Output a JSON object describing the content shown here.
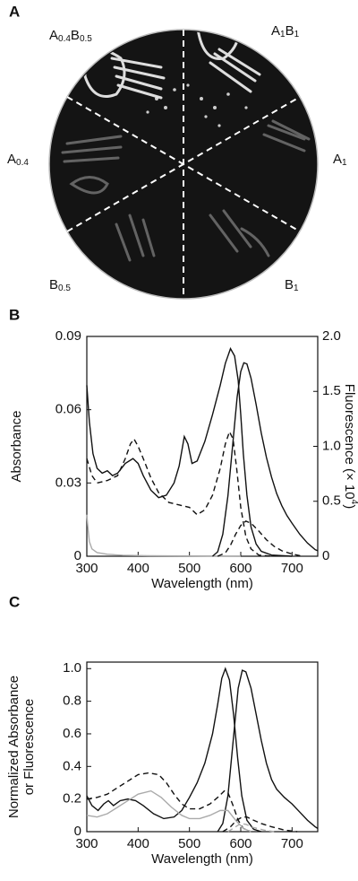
{
  "photo": {
    "panel": "A",
    "sectors": [
      {
        "parts": [
          "A",
          "0.4",
          "B",
          "0.5"
        ]
      },
      {
        "parts": [
          "A",
          "1",
          "B",
          "1"
        ]
      },
      {
        "parts": [
          "A",
          "0.4"
        ]
      },
      {
        "parts": [
          "A",
          "1"
        ]
      },
      {
        "parts": [
          "B",
          "0.5"
        ]
      },
      {
        "parts": [
          "B",
          "1"
        ]
      }
    ]
  },
  "chart_data": [
    {
      "type": "line",
      "panel": "B",
      "xlabel": "Wavelength (nm)",
      "ylabel": [
        "Absorbance"
      ],
      "y2label": [
        "Fluorescence (× 10",
        "4",
        ")"
      ],
      "xlim": [
        300,
        750
      ],
      "xticks": [
        300,
        400,
        500,
        600,
        700
      ],
      "ylim": [
        0,
        0.09
      ],
      "yticks": [
        0,
        0.03,
        0.06,
        0.09
      ],
      "y2lim": [
        0,
        2
      ],
      "y2ticks": [
        0,
        0.5,
        {
          "value": 1,
          "label": "1.0"
        },
        1.5,
        {
          "value": 2,
          "label": "2.0"
        }
      ],
      "series": [
        {
          "color": "#111111",
          "dash": false,
          "x": [
            300,
            305,
            312,
            320,
            330,
            340,
            350,
            360,
            375,
            390,
            400,
            410,
            425,
            440,
            455,
            470,
            480,
            490,
            497,
            505,
            515,
            530,
            545,
            560,
            570,
            580,
            588,
            595,
            600,
            605,
            612,
            620,
            630,
            640,
            660,
            700
          ],
          "values": [
            0.07,
            0.055,
            0.042,
            0.036,
            0.034,
            0.035,
            0.033,
            0.034,
            0.038,
            0.04,
            0.038,
            0.033,
            0.027,
            0.024,
            0.025,
            0.03,
            0.037,
            0.049,
            0.046,
            0.038,
            0.039,
            0.047,
            0.058,
            0.07,
            0.079,
            0.085,
            0.082,
            0.072,
            0.058,
            0.042,
            0.025,
            0.012,
            0.005,
            0.002,
            0.0005,
            0
          ]
        },
        {
          "color": "#111111",
          "dash": true,
          "x": [
            300,
            310,
            320,
            340,
            360,
            375,
            385,
            392,
            400,
            410,
            425,
            440,
            460,
            480,
            500,
            515,
            530,
            545,
            560,
            570,
            578,
            585,
            592,
            600,
            610,
            620,
            635,
            660
          ],
          "values": [
            0.04,
            0.033,
            0.03,
            0.031,
            0.033,
            0.04,
            0.046,
            0.048,
            0.045,
            0.04,
            0.032,
            0.026,
            0.022,
            0.021,
            0.02,
            0.017,
            0.019,
            0.025,
            0.036,
            0.046,
            0.051,
            0.048,
            0.036,
            0.02,
            0.008,
            0.003,
            0.0005,
            0
          ]
        },
        {
          "color": "#aaaaaa",
          "dash": false,
          "x": [
            300,
            302,
            305,
            310,
            320,
            340,
            370,
            420,
            500,
            600
          ],
          "values": [
            0.017,
            0.012,
            0.006,
            0.003,
            0.0015,
            0.0008,
            0.0004,
            0.0002,
            0.0001,
            0
          ]
        },
        {
          "color": "#111111",
          "dash": false,
          "axis": "y2",
          "x": [
            545,
            555,
            565,
            575,
            585,
            593,
            600,
            606,
            612,
            620,
            630,
            640,
            650,
            660,
            670,
            680,
            690,
            700,
            715,
            730,
            745,
            750
          ],
          "values": [
            0,
            0.04,
            0.2,
            0.55,
            1.05,
            1.45,
            1.68,
            1.76,
            1.75,
            1.62,
            1.38,
            1.12,
            0.9,
            0.72,
            0.57,
            0.46,
            0.37,
            0.3,
            0.2,
            0.12,
            0.06,
            0.05
          ]
        },
        {
          "color": "#111111",
          "dash": true,
          "axis": "y2",
          "x": [
            555,
            570,
            580,
            590,
            600,
            610,
            620,
            635,
            650,
            665,
            680,
            700,
            720
          ],
          "values": [
            0,
            0.03,
            0.1,
            0.2,
            0.28,
            0.32,
            0.3,
            0.23,
            0.15,
            0.09,
            0.05,
            0.02,
            0
          ]
        }
      ]
    },
    {
      "type": "line",
      "panel": "C",
      "xlabel": "Wavelength (nm)",
      "ylabel": [
        "Normalized Absorbance",
        "or Fluorescence"
      ],
      "xlim": [
        300,
        750
      ],
      "xticks": [
        300,
        400,
        500,
        600,
        700
      ],
      "ylim": [
        0,
        1.04
      ],
      "yticks": [
        0,
        0.2,
        0.4,
        0.6,
        0.8,
        {
          "value": 1,
          "label": "1.0"
        }
      ],
      "series": [
        {
          "color": "#111111",
          "dash": false,
          "x": [
            300,
            310,
            322,
            333,
            342,
            352,
            365,
            380,
            395,
            410,
            430,
            450,
            470,
            485,
            500,
            515,
            530,
            545,
            555,
            563,
            570,
            578,
            586,
            594,
            602,
            612,
            625,
            640
          ],
          "values": [
            0.22,
            0.16,
            0.13,
            0.17,
            0.19,
            0.16,
            0.19,
            0.2,
            0.19,
            0.16,
            0.11,
            0.08,
            0.09,
            0.13,
            0.21,
            0.3,
            0.42,
            0.6,
            0.78,
            0.94,
            1.0,
            0.93,
            0.72,
            0.45,
            0.22,
            0.07,
            0.015,
            0
          ]
        },
        {
          "color": "#111111",
          "dash": false,
          "x": [
            555,
            565,
            575,
            585,
            595,
            603,
            610,
            620,
            630,
            640,
            650,
            660,
            670,
            685,
            700,
            715,
            730,
            745,
            750
          ],
          "values": [
            0,
            0.05,
            0.22,
            0.55,
            0.88,
            0.99,
            0.98,
            0.88,
            0.72,
            0.56,
            0.42,
            0.32,
            0.26,
            0.21,
            0.17,
            0.12,
            0.07,
            0.03,
            0.02
          ]
        },
        {
          "color": "#111111",
          "dash": true,
          "x": [
            300,
            320,
            340,
            360,
            380,
            400,
            420,
            440,
            455,
            470,
            485,
            500,
            520,
            540,
            555,
            568,
            575,
            585,
            595,
            605,
            620
          ],
          "values": [
            0.2,
            0.21,
            0.23,
            0.27,
            0.31,
            0.35,
            0.36,
            0.35,
            0.3,
            0.23,
            0.17,
            0.14,
            0.14,
            0.17,
            0.21,
            0.25,
            0.24,
            0.16,
            0.07,
            0.02,
            0
          ]
        },
        {
          "color": "#aaaaaa",
          "dash": false,
          "x": [
            300,
            320,
            340,
            360,
            380,
            400,
            425,
            445,
            465,
            485,
            500,
            520,
            540,
            560,
            575,
            590,
            605,
            620
          ],
          "values": [
            0.1,
            0.09,
            0.11,
            0.15,
            0.19,
            0.23,
            0.25,
            0.21,
            0.15,
            0.1,
            0.08,
            0.08,
            0.1,
            0.13,
            0.13,
            0.07,
            0.02,
            0
          ]
        },
        {
          "color": "#111111",
          "dash": true,
          "x": [
            565,
            580,
            592,
            603,
            612,
            625,
            640,
            660,
            685,
            710
          ],
          "values": [
            0,
            0.03,
            0.07,
            0.09,
            0.09,
            0.07,
            0.05,
            0.03,
            0.01,
            0
          ]
        },
        {
          "color": "#aaaaaa",
          "dash": true,
          "x": [
            575,
            590,
            600,
            610,
            625,
            645,
            665
          ],
          "values": [
            0,
            0.03,
            0.05,
            0.045,
            0.025,
            0.01,
            0
          ]
        }
      ]
    }
  ]
}
